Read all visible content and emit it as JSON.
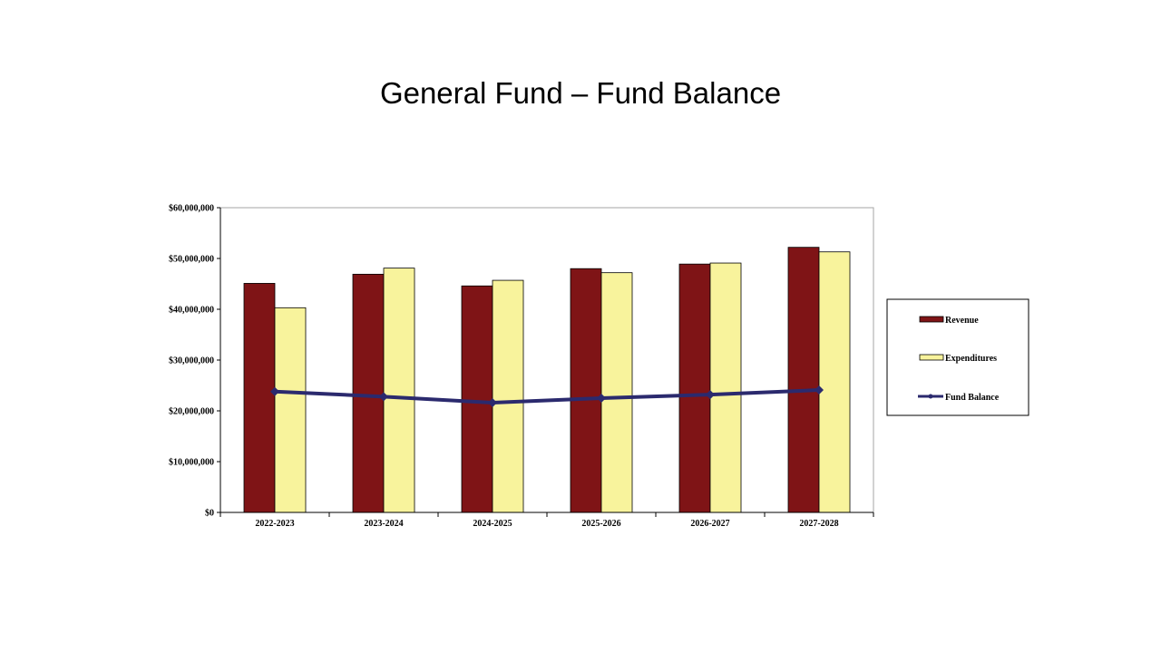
{
  "title": "General Fund – Fund Balance",
  "colors": {
    "revenue": "#7f1416",
    "expenditures": "#f8f39c",
    "fund_balance": "#2b2a6e"
  },
  "chart_data": {
    "type": "bar",
    "title": "General Fund – Fund Balance",
    "categories": [
      "2022-2023",
      "2023-2024",
      "2024-2025",
      "2025-2026",
      "2026-2027",
      "2027-2028"
    ],
    "series": [
      {
        "name": "Revenue",
        "type": "bar",
        "values": [
          45100000,
          46900000,
          44600000,
          48000000,
          48900000,
          52200000
        ]
      },
      {
        "name": "Expenditures",
        "type": "bar",
        "values": [
          40300000,
          48100000,
          45700000,
          47200000,
          49100000,
          51300000
        ]
      },
      {
        "name": "Fund Balance",
        "type": "line",
        "values": [
          23800000,
          22800000,
          21600000,
          22500000,
          23200000,
          24100000
        ]
      }
    ],
    "ylim": [
      0,
      60000000
    ],
    "yticks": [
      "$0",
      "$10,000,000",
      "$20,000,000",
      "$30,000,000",
      "$40,000,000",
      "$50,000,000",
      "$60,000,000"
    ],
    "grid": false,
    "legend": "right"
  }
}
